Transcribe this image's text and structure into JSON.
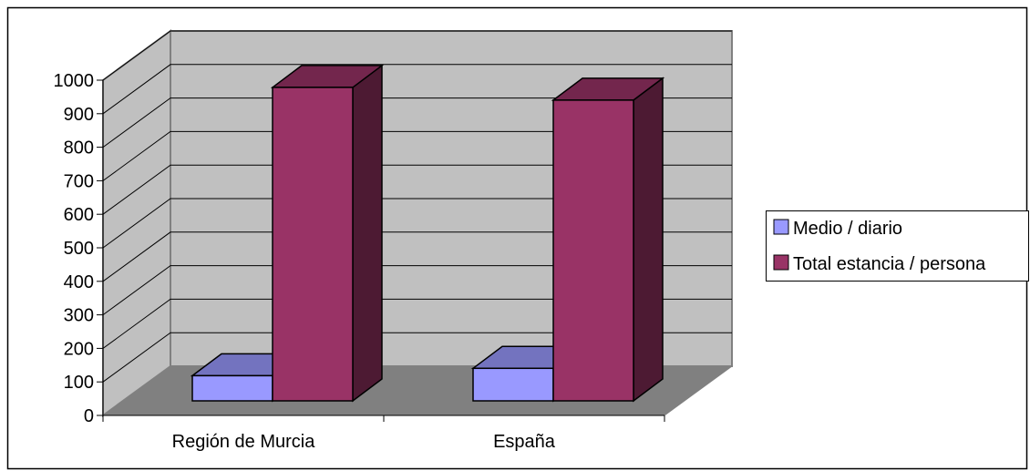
{
  "chart_data": {
    "type": "bar",
    "categories": [
      "Región de Murcia",
      "España"
    ],
    "series": [
      {
        "name": "Medio / diario",
        "values": [
          75,
          97
        ],
        "color": "#9999ff"
      },
      {
        "name": "Total estancia / persona",
        "values": [
          935,
          897
        ],
        "color": "#993366"
      }
    ],
    "yticks": [
      "0",
      "100",
      "200",
      "300",
      "400",
      "500",
      "600",
      "700",
      "800",
      "900",
      "1000"
    ],
    "ylim": [
      0,
      1000
    ],
    "grid": true,
    "legend": "right",
    "style": "3d-clustered-column"
  }
}
